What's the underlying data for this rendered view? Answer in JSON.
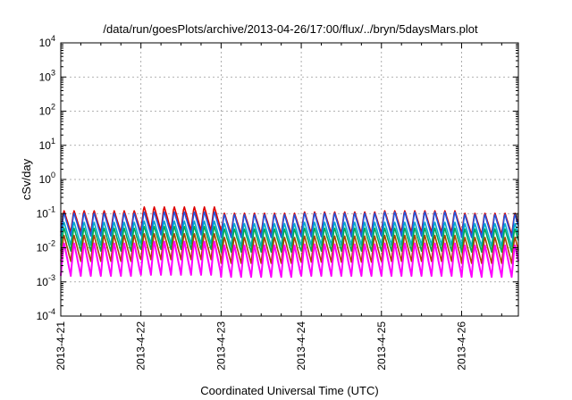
{
  "chart_data": {
    "type": "line",
    "title": "/data/run/goesPlots/archive/2013-04-26/17:00/flux/../bryn/5daysMars.plot",
    "xlabel": "Coordinated Universal Time (UTC)",
    "ylabel": "cSv/day",
    "yscale": "log",
    "ylim": [
      0.0001,
      10000
    ],
    "xlim": [
      "2013-04-21T00:00",
      "2013-04-26T17:00"
    ],
    "grid": true,
    "x_tick_labels": [
      "2013-4-21",
      "2013-4-22",
      "2013-4-23",
      "2013-4-24",
      "2013-4-25",
      "2013-4-26"
    ],
    "y_ticks": [
      {
        "value": 0.0001,
        "base": "10",
        "exp": "-4"
      },
      {
        "value": 0.001,
        "base": "10",
        "exp": "-3"
      },
      {
        "value": 0.01,
        "base": "10",
        "exp": "-2"
      },
      {
        "value": 0.1,
        "base": "10",
        "exp": "-1"
      },
      {
        "value": 1,
        "base": "10",
        "exp": "0"
      },
      {
        "value": 10,
        "base": "10",
        "exp": "1"
      },
      {
        "value": 100,
        "base": "10",
        "exp": "2"
      },
      {
        "value": 1000,
        "base": "10",
        "exp": "3"
      },
      {
        "value": 10000,
        "base": "10",
        "exp": "4"
      }
    ],
    "orbit_period_hours": 3,
    "series": [
      {
        "color": "#dd0000",
        "peak": [
          0.13,
          0.17,
          0.11,
          0.12,
          0.13,
          0.11
        ],
        "trough": [
          0.028,
          0.032,
          0.025,
          0.026,
          0.028,
          0.024
        ]
      },
      {
        "color": "#2255dd",
        "peak": [
          0.11,
          0.12,
          0.1,
          0.11,
          0.12,
          0.1
        ],
        "trough": [
          0.022,
          0.024,
          0.02,
          0.021,
          0.022,
          0.02
        ]
      },
      {
        "color": "#00aacc",
        "peak": [
          0.06,
          0.065,
          0.055,
          0.06,
          0.06,
          0.055
        ],
        "trough": [
          0.012,
          0.013,
          0.011,
          0.012,
          0.012,
          0.011
        ]
      },
      {
        "color": "#00aa55",
        "peak": [
          0.04,
          0.045,
          0.038,
          0.04,
          0.04,
          0.038
        ],
        "trough": [
          0.008,
          0.009,
          0.0075,
          0.008,
          0.008,
          0.0075
        ]
      },
      {
        "color": "#aa4400",
        "peak": [
          0.025,
          0.028,
          0.022,
          0.024,
          0.025,
          0.022
        ],
        "trough": [
          0.004,
          0.0045,
          0.0035,
          0.0038,
          0.004,
          0.0035
        ]
      },
      {
        "color": "#ff00ff",
        "peak": [
          0.015,
          0.017,
          0.013,
          0.014,
          0.015,
          0.013
        ],
        "trough": [
          0.0015,
          0.0016,
          0.0014,
          0.0015,
          0.0015,
          0.0014
        ]
      }
    ]
  }
}
